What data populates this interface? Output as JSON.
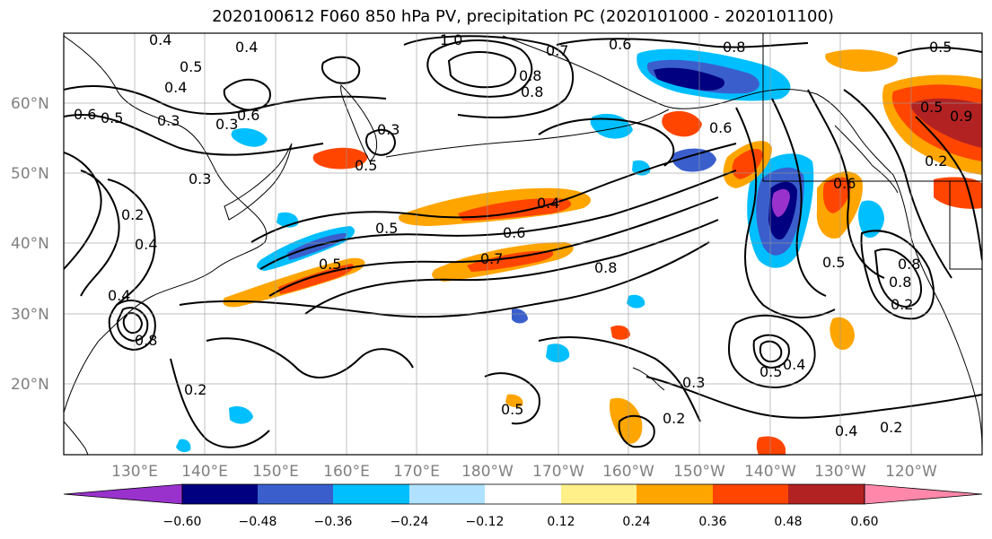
{
  "title": "2020100612 F060 850 hPa PV, precipitation PC (2020101000 - 2020101100)",
  "map": {
    "lat_labels": [
      "60°N",
      "50°N",
      "40°N",
      "30°N",
      "20°N"
    ],
    "lon_labels": [
      "130°E",
      "140°E",
      "150°E",
      "160°E",
      "170°E",
      "180°W",
      "170°W",
      "160°W",
      "150°W",
      "140°W",
      "130°W",
      "120°W"
    ],
    "contour_labels": [
      "0.4",
      "0.4",
      "0.5",
      "0.4",
      "0.3",
      "0.6",
      "0.5",
      "0.6",
      "0.5",
      "0.3",
      "0.2",
      "0.4",
      "0.3",
      "0.3",
      "0.5",
      "0.7",
      "0.6",
      "0.8",
      "0.8",
      "1.0",
      "0.5",
      "0.6",
      "0.7",
      "0.8",
      "0.4",
      "0.6",
      "0.5",
      "0.2",
      "0.8",
      "0.4",
      "0.2",
      "0.8",
      "0.3",
      "0.2",
      "0.5",
      "0.4",
      "0.2",
      "0.4",
      "0.5",
      "0.8",
      "0.8",
      "0.2",
      "0.6",
      "0.5",
      "0.9",
      "0.5"
    ]
  },
  "colorbar": {
    "ticks": [
      "−0.60",
      "−0.48",
      "−0.36",
      "−0.24",
      "−0.12",
      "0.12",
      "0.24",
      "0.36",
      "0.48",
      "0.60"
    ],
    "colors": [
      "#9932cc",
      "#000080",
      "#3a5fcd",
      "#00bfff",
      "#b0e2ff",
      "#ffffff",
      "#fff08a",
      "#ffa500",
      "#ff4500",
      "#b22222",
      "#ff88aa"
    ]
  }
}
